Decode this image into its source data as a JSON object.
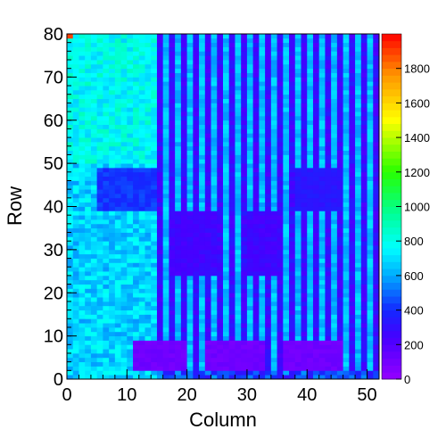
{
  "chart_data": {
    "type": "heatmap",
    "title": "",
    "xlabel": "Column",
    "ylabel": "Row",
    "xlim": [
      0,
      52
    ],
    "ylim": [
      0,
      80
    ],
    "zlim": [
      0,
      2000
    ],
    "x_ticks": [
      "0",
      "10",
      "20",
      "30",
      "40",
      "50"
    ],
    "x_tick_values": [
      0,
      10,
      20,
      30,
      40,
      50
    ],
    "y_ticks": [
      "0",
      "10",
      "20",
      "30",
      "40",
      "50",
      "60",
      "70",
      "80"
    ],
    "y_tick_values": [
      0,
      10,
      20,
      30,
      40,
      50,
      60,
      70,
      80
    ],
    "z_ticks": [
      "0",
      "200",
      "400",
      "600",
      "800",
      "1000",
      "1200",
      "1400",
      "1600",
      "1800"
    ],
    "z_tick_values": [
      0,
      200,
      400,
      600,
      800,
      1000,
      1200,
      1400,
      1600,
      1800
    ],
    "grid": false,
    "colorbar": "right",
    "palette": "rainbow (violet = low, red = high)",
    "cell_values_summary": {
      "columns_0_to_14_rows_50_to_80": 780,
      "columns_0_to_14_rows_0_to_50": 680,
      "block_columns_5_to_14_rows_39_to_48": 420,
      "columns_15_to_52_bright_strips": 640,
      "columns_15_to_52_dark_strips": 280,
      "dark_bands_rows_24_to_38": 220,
      "dark_block_columns_38_to_45_rows_39_to_48": 300,
      "bottom_blobs_rows_2_to_8": 80,
      "bottom_blob_column_ranges": [
        [
          11,
          19
        ],
        [
          23,
          32
        ],
        [
          36,
          45
        ]
      ],
      "corner_cell_column_0_row_79": 1900
    }
  }
}
